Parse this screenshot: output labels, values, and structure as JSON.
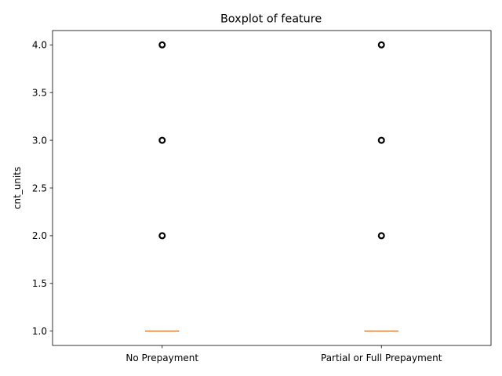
{
  "chart_data": {
    "type": "box",
    "title": "Boxplot of feature",
    "xlabel": "",
    "ylabel": "cnt_units",
    "ylim": [
      0.85,
      4.15
    ],
    "yticks": [
      1.0,
      1.5,
      2.0,
      2.5,
      3.0,
      3.5,
      4.0
    ],
    "ytick_labels": [
      "1.0",
      "1.5",
      "2.0",
      "2.5",
      "3.0",
      "3.5",
      "4.0"
    ],
    "grid": false,
    "legend": "none",
    "categories": [
      "No Prepayment",
      "Partial or Full Prepayment"
    ],
    "boxes": [
      {
        "category": "No Prepayment",
        "min": 1.0,
        "q1": 1.0,
        "median": 1.0,
        "q3": 1.0,
        "max": 1.0,
        "outliers": [
          2.0,
          3.0,
          4.0
        ]
      },
      {
        "category": "Partial or Full Prepayment",
        "min": 1.0,
        "q1": 1.0,
        "median": 1.0,
        "q3": 1.0,
        "max": 1.0,
        "outliers": [
          2.0,
          3.0,
          4.0
        ]
      }
    ],
    "colors": {
      "median": "#e0843c",
      "box": "#000000",
      "outlier": "#000000"
    }
  }
}
